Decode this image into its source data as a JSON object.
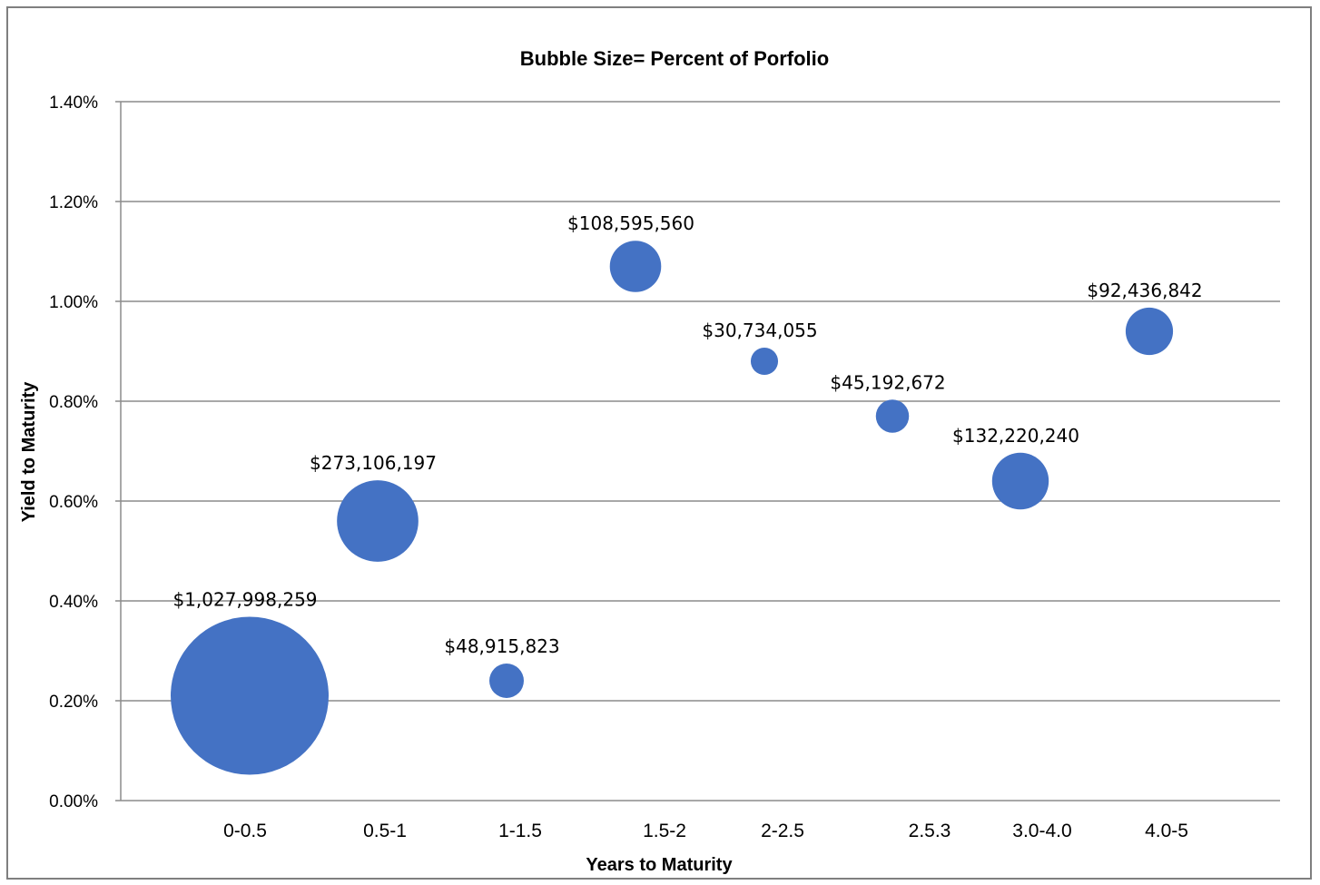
{
  "chart_data": {
    "type": "scatter",
    "subtype": "bubble",
    "title": "Bubble Size= Percent of Porfolio",
    "xlabel": "Years to Maturity",
    "ylabel": "Yield to Maturity",
    "ylim": [
      0,
      0.014
    ],
    "yticks": [
      0,
      0.002,
      0.004,
      0.006,
      0.008,
      0.01,
      0.012,
      0.014
    ],
    "ytick_labels": [
      "0.00%",
      "0.20%",
      "0.40%",
      "0.60%",
      "0.80%",
      "1.00%",
      "1.20%",
      "1.40%"
    ],
    "xlim": [
      0,
      8.5
    ],
    "categories": [
      "0-0.5",
      "0.5-1",
      "1-1.5",
      "1.5-2",
      "2-2.5",
      "2.5.3",
      "3.0-4.0",
      "4.0-5"
    ],
    "grid": true,
    "legend": "none",
    "bubble_color": "#4472c4",
    "points": [
      {
        "x": 1.0,
        "y": 0.0021,
        "size": 1027998259,
        "label": "$1,027,998,259"
      },
      {
        "x": 2.0,
        "y": 0.0056,
        "size": 273106197,
        "label": "$273,106,197"
      },
      {
        "x": 3.0,
        "y": 0.0024,
        "size": 48915823,
        "label": "$48,915,823"
      },
      {
        "x": 4.0,
        "y": 0.0107,
        "size": 108595560,
        "label": "$108,595,560"
      },
      {
        "x": 5.0,
        "y": 0.0088,
        "size": 30734055,
        "label": "$30,734,055"
      },
      {
        "x": 6.0,
        "y": 0.0077,
        "size": 45192672,
        "label": "$45,192,672"
      },
      {
        "x": 7.0,
        "y": 0.0064,
        "size": 132220240,
        "label": "$132,220,240"
      },
      {
        "x": 8.0,
        "y": 0.0094,
        "size": 92436842,
        "label": "$92,436,842"
      }
    ]
  }
}
